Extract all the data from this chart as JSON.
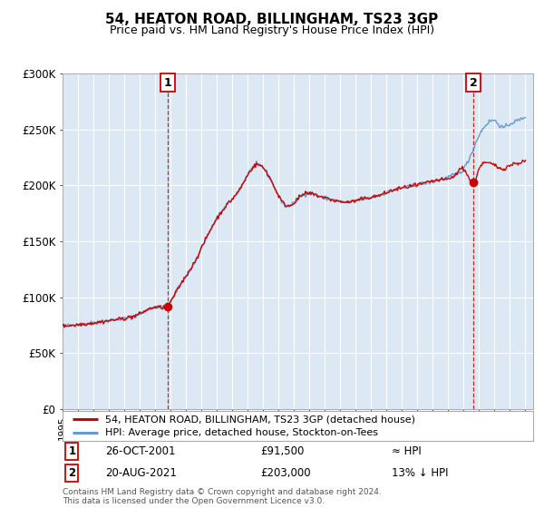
{
  "title": "54, HEATON ROAD, BILLINGHAM, TS23 3GP",
  "subtitle": "Price paid vs. HM Land Registry's House Price Index (HPI)",
  "ylabel_ticks": [
    "£0",
    "£50K",
    "£100K",
    "£150K",
    "£200K",
    "£250K",
    "£300K"
  ],
  "ytick_values": [
    0,
    50000,
    100000,
    150000,
    200000,
    250000,
    300000
  ],
  "ylim": [
    0,
    300000
  ],
  "xlim_start": 1995.0,
  "xlim_end": 2025.5,
  "line1_label": "54, HEATON ROAD, BILLINGHAM, TS23 3GP (detached house)",
  "line2_label": "HPI: Average price, detached house, Stockton-on-Tees",
  "line1_color": "#cc0000",
  "line2_color": "#6699cc",
  "plot_bg_color": "#dce9f5",
  "grid_color": "#ffffff",
  "point1_x": 2001.82,
  "point1_y": 91500,
  "point2_x": 2021.63,
  "point2_y": 203000,
  "point1_date": "26-OCT-2001",
  "point1_price": "£91,500",
  "point1_hpi": "≈ HPI",
  "point2_date": "20-AUG-2021",
  "point2_price": "£203,000",
  "point2_hpi": "13% ↓ HPI",
  "footer1": "Contains HM Land Registry data © Crown copyright and database right 2024.",
  "footer2": "This data is licensed under the Open Government Licence v3.0.",
  "bg_color": "#ffffff",
  "title_fontsize": 11,
  "subtitle_fontsize": 9
}
